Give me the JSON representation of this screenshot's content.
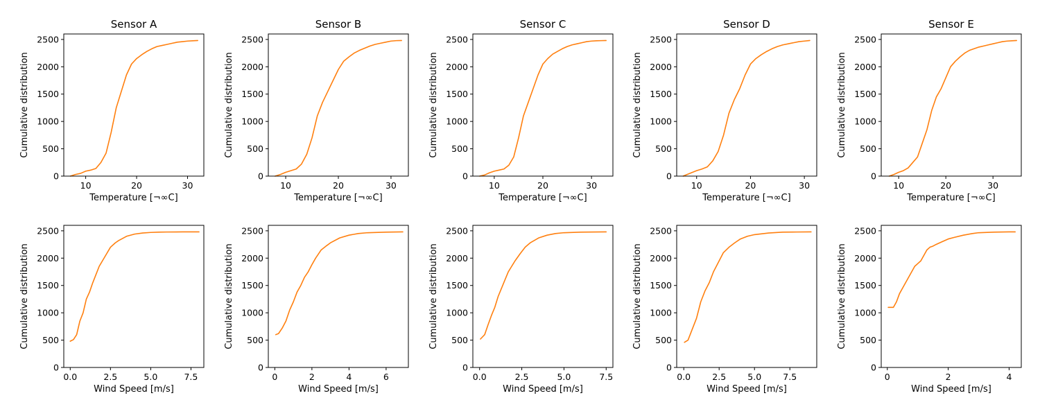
{
  "colors": {
    "series": "#ff7f0e",
    "axes": "#000000",
    "background": "#ffffff"
  },
  "chart_data": [
    {
      "type": "line",
      "title": "Sensor A",
      "xlabel": "Temperature [¬∞C]",
      "ylabel": "Cumulative distribution",
      "xlim": [
        5.7,
        33.2
      ],
      "ylim": [
        0,
        2600
      ],
      "xticks": [
        10,
        20,
        30
      ],
      "yticks": [
        0,
        500,
        1000,
        1500,
        2000,
        2500
      ],
      "grid": false,
      "x": [
        7,
        8,
        9,
        10,
        11,
        12,
        13,
        14,
        15,
        16,
        17,
        18,
        19,
        20,
        21,
        22,
        23,
        24,
        25,
        26,
        27,
        28,
        29,
        30,
        31,
        32
      ],
      "y": [
        0,
        30,
        50,
        90,
        110,
        140,
        250,
        420,
        800,
        1250,
        1550,
        1850,
        2050,
        2150,
        2220,
        2280,
        2330,
        2370,
        2390,
        2410,
        2430,
        2450,
        2460,
        2470,
        2475,
        2480
      ]
    },
    {
      "type": "line",
      "title": "Sensor B",
      "xlabel": "Temperature [¬∞C]",
      "ylabel": "Cumulative distribution",
      "xlim": [
        6.7,
        33.3
      ],
      "ylim": [
        0,
        2600
      ],
      "xticks": [
        10,
        20,
        30
      ],
      "yticks": [
        0,
        500,
        1000,
        1500,
        2000,
        2500
      ],
      "grid": false,
      "x": [
        8,
        9,
        10,
        11,
        12,
        13,
        14,
        15,
        16,
        17,
        18,
        19,
        20,
        21,
        22,
        23,
        24,
        25,
        26,
        27,
        28,
        29,
        30,
        31,
        32
      ],
      "y": [
        0,
        30,
        70,
        100,
        130,
        220,
        400,
        700,
        1100,
        1350,
        1550,
        1750,
        1950,
        2100,
        2180,
        2250,
        2300,
        2340,
        2380,
        2410,
        2430,
        2450,
        2470,
        2478,
        2480
      ]
    },
    {
      "type": "line",
      "title": "Sensor C",
      "xlabel": "Temperature [¬∞C]",
      "ylabel": "Cumulative distribution",
      "xlim": [
        5.6,
        34.4
      ],
      "ylim": [
        0,
        2600
      ],
      "xticks": [
        10,
        20,
        30
      ],
      "yticks": [
        0,
        500,
        1000,
        1500,
        2000,
        2500
      ],
      "grid": false,
      "x": [
        7,
        8,
        9,
        10,
        11,
        12,
        13,
        14,
        15,
        16,
        17,
        18,
        19,
        20,
        21,
        22,
        23,
        24,
        25,
        26,
        27,
        28,
        29,
        30,
        31,
        32,
        33
      ],
      "y": [
        0,
        20,
        60,
        90,
        110,
        130,
        200,
        350,
        700,
        1100,
        1350,
        1600,
        1850,
        2050,
        2150,
        2230,
        2280,
        2330,
        2370,
        2400,
        2420,
        2440,
        2460,
        2470,
        2475,
        2478,
        2480
      ]
    },
    {
      "type": "line",
      "title": "Sensor D",
      "xlabel": "Temperature [¬∞C]",
      "ylabel": "Cumulative distribution",
      "xlim": [
        6.3,
        32.3
      ],
      "ylim": [
        0,
        2600
      ],
      "xticks": [
        10,
        20,
        30
      ],
      "yticks": [
        0,
        500,
        1000,
        1500,
        2000,
        2500
      ],
      "grid": false,
      "x": [
        7.5,
        8,
        9,
        10,
        11,
        12,
        13,
        14,
        15,
        16,
        17,
        18,
        19,
        20,
        21,
        22,
        23,
        24,
        25,
        26,
        27,
        28,
        29,
        30,
        31
      ],
      "y": [
        0,
        20,
        60,
        100,
        130,
        170,
        280,
        450,
        750,
        1150,
        1400,
        1600,
        1850,
        2050,
        2150,
        2220,
        2280,
        2330,
        2370,
        2400,
        2420,
        2440,
        2460,
        2470,
        2480
      ]
    },
    {
      "type": "line",
      "title": "Sensor E",
      "xlabel": "Temperature [¬∞C]",
      "ylabel": "Cumulative distribution",
      "xlim": [
        6.3,
        36.0
      ],
      "ylim": [
        0,
        2600
      ],
      "xticks": [
        10,
        20,
        30
      ],
      "yticks": [
        0,
        500,
        1000,
        1500,
        2000,
        2500
      ],
      "grid": false,
      "x": [
        8,
        9,
        10,
        11,
        12,
        13,
        14,
        15,
        16,
        17,
        18,
        19,
        20,
        21,
        22,
        23,
        24,
        25,
        26,
        27,
        28,
        29,
        30,
        31,
        32,
        33,
        34,
        35
      ],
      "y": [
        0,
        30,
        70,
        100,
        150,
        250,
        350,
        600,
        850,
        1200,
        1450,
        1600,
        1800,
        2000,
        2100,
        2180,
        2250,
        2300,
        2330,
        2360,
        2380,
        2400,
        2420,
        2440,
        2460,
        2470,
        2475,
        2480
      ]
    },
    {
      "type": "line",
      "title": "",
      "xlabel": "Wind Speed [m/s]",
      "ylabel": "Cumulative distribution",
      "xlim": [
        -0.4,
        8.3
      ],
      "ylim": [
        0,
        2600
      ],
      "xticks": [
        0.0,
        2.5,
        5.0,
        7.5
      ],
      "xtick_labels": [
        "0.0",
        "2.5",
        "5.0",
        "7.5"
      ],
      "yticks": [
        0,
        500,
        1000,
        1500,
        2000,
        2500
      ],
      "grid": false,
      "x": [
        0,
        0.2,
        0.4,
        0.6,
        0.8,
        1.0,
        1.2,
        1.4,
        1.6,
        1.8,
        2.0,
        2.2,
        2.5,
        2.8,
        3.0,
        3.5,
        4.0,
        4.5,
        5.0,
        5.5,
        6.0,
        7.0,
        8.0
      ],
      "y": [
        480,
        510,
        600,
        850,
        1000,
        1250,
        1380,
        1550,
        1700,
        1850,
        1950,
        2050,
        2200,
        2280,
        2320,
        2400,
        2440,
        2460,
        2470,
        2475,
        2478,
        2480,
        2480
      ]
    },
    {
      "type": "line",
      "title": "",
      "xlabel": "Wind Speed [m/s]",
      "ylabel": "Cumulative distribution",
      "xlim": [
        -0.35,
        7.2
      ],
      "ylim": [
        0,
        2600
      ],
      "xticks": [
        0,
        2,
        4,
        6
      ],
      "yticks": [
        0,
        500,
        1000,
        1500,
        2000,
        2500
      ],
      "grid": false,
      "x": [
        0.05,
        0.2,
        0.4,
        0.6,
        0.8,
        1.0,
        1.2,
        1.4,
        1.6,
        1.8,
        2.0,
        2.2,
        2.5,
        2.8,
        3.0,
        3.5,
        4.0,
        4.5,
        5.0,
        6.0,
        6.9
      ],
      "y": [
        600,
        620,
        720,
        850,
        1050,
        1200,
        1380,
        1500,
        1650,
        1750,
        1880,
        2000,
        2150,
        2230,
        2280,
        2370,
        2420,
        2450,
        2465,
        2475,
        2480
      ]
    },
    {
      "type": "line",
      "title": "",
      "xlabel": "Wind Speed [m/s]",
      "ylabel": "Cumulative distribution",
      "xlim": [
        -0.4,
        7.9
      ],
      "ylim": [
        0,
        2600
      ],
      "xticks": [
        0.0,
        2.5,
        5.0,
        7.5
      ],
      "xtick_labels": [
        "0.0",
        "2.5",
        "5.0",
        "7.5"
      ],
      "yticks": [
        0,
        500,
        1000,
        1500,
        2000,
        2500
      ],
      "grid": false,
      "x": [
        0.05,
        0.3,
        0.5,
        0.7,
        0.9,
        1.1,
        1.3,
        1.5,
        1.7,
        1.9,
        2.1,
        2.4,
        2.7,
        3.0,
        3.5,
        4.0,
        4.5,
        5.0,
        6.0,
        7.5
      ],
      "y": [
        520,
        600,
        780,
        950,
        1100,
        1300,
        1450,
        1600,
        1750,
        1850,
        1950,
        2080,
        2200,
        2280,
        2370,
        2420,
        2450,
        2465,
        2475,
        2480
      ]
    },
    {
      "type": "line",
      "title": "",
      "xlabel": "Wind Speed [m/s]",
      "ylabel": "Cumulative distribution",
      "xlim": [
        -0.5,
        9.4
      ],
      "ylim": [
        0,
        2600
      ],
      "xticks": [
        0.0,
        2.5,
        5.0,
        7.5
      ],
      "xtick_labels": [
        "0.0",
        "2.5",
        "5.0",
        "7.5"
      ],
      "yticks": [
        0,
        500,
        1000,
        1500,
        2000,
        2500
      ],
      "grid": false,
      "x": [
        0.05,
        0.3,
        0.6,
        0.9,
        1.2,
        1.5,
        1.8,
        2.1,
        2.5,
        2.8,
        3.2,
        3.6,
        4.0,
        4.5,
        5.0,
        6.0,
        7.0,
        8.0,
        9.0
      ],
      "y": [
        460,
        500,
        700,
        900,
        1200,
        1400,
        1550,
        1750,
        1950,
        2100,
        2200,
        2280,
        2350,
        2400,
        2430,
        2460,
        2475,
        2478,
        2480
      ]
    },
    {
      "type": "line",
      "title": "",
      "xlabel": "Wind Speed [m/s]",
      "ylabel": "Cumulative distribution",
      "xlim": [
        -0.2,
        4.4
      ],
      "ylim": [
        0,
        2600
      ],
      "xticks": [
        0,
        2,
        4
      ],
      "yticks": [
        0,
        500,
        1000,
        1500,
        2000,
        2500
      ],
      "grid": false,
      "x": [
        0.03,
        0.2,
        0.3,
        0.4,
        0.5,
        0.6,
        0.7,
        0.8,
        0.9,
        1.0,
        1.1,
        1.2,
        1.3,
        1.4,
        1.5,
        1.6,
        1.8,
        2.0,
        2.2,
        2.5,
        2.8,
        3.0,
        3.5,
        4.0,
        4.2
      ],
      "y": [
        1100,
        1100,
        1200,
        1350,
        1450,
        1550,
        1650,
        1750,
        1850,
        1900,
        1950,
        2050,
        2150,
        2200,
        2220,
        2250,
        2300,
        2350,
        2380,
        2420,
        2450,
        2465,
        2475,
        2480,
        2480
      ]
    }
  ]
}
